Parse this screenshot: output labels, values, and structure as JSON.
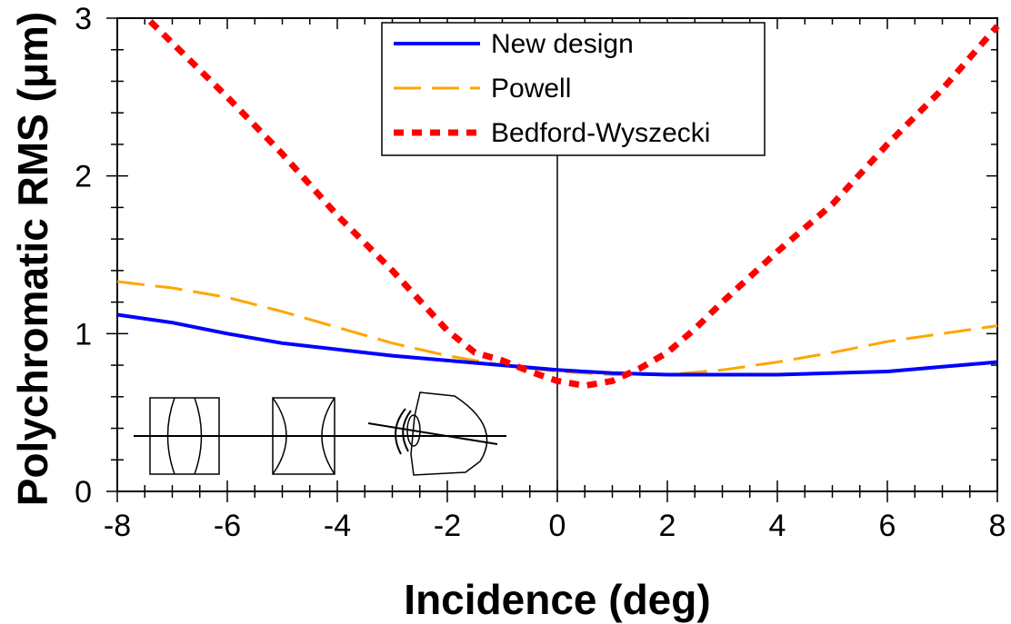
{
  "chart_data": {
    "type": "line",
    "xlabel": "Incidence (deg)",
    "ylabel": "Polychromatic RMS (μm)",
    "xlim": [
      -8,
      8
    ],
    "ylim": [
      0,
      3
    ],
    "xticks": [
      -8,
      -6,
      -4,
      -2,
      0,
      2,
      4,
      6,
      8
    ],
    "yticks": [
      0,
      1,
      2,
      3
    ],
    "grid": false,
    "legend_position": "top-center",
    "series": [
      {
        "name": "New design",
        "color": "#0000ff",
        "style": "solid",
        "x": [
          -8,
          -7,
          -6,
          -5,
          -4,
          -3,
          -2,
          -1,
          0,
          1,
          2,
          3,
          4,
          5,
          6,
          7,
          8
        ],
        "y": [
          1.12,
          1.07,
          1.0,
          0.94,
          0.9,
          0.86,
          0.83,
          0.8,
          0.77,
          0.75,
          0.74,
          0.74,
          0.74,
          0.75,
          0.76,
          0.79,
          0.82
        ]
      },
      {
        "name": "Powell",
        "color": "#ffa500",
        "style": "dashed",
        "x": [
          -8,
          -7,
          -6,
          -5,
          -4,
          -3,
          -2,
          -1,
          0,
          1,
          2,
          3,
          4,
          5,
          6,
          7,
          8
        ],
        "y": [
          1.33,
          1.29,
          1.23,
          1.14,
          1.04,
          0.94,
          0.86,
          0.8,
          0.76,
          0.74,
          0.74,
          0.77,
          0.82,
          0.88,
          0.95,
          1.0,
          1.05
        ]
      },
      {
        "name": "Bedford-Wyszecki",
        "color": "#ff0000",
        "style": "dotted",
        "x": [
          -7.4,
          -6,
          -5,
          -4,
          -3,
          -2,
          -1.5,
          -1,
          -0.5,
          0,
          0.5,
          1,
          1.5,
          2,
          2.5,
          3,
          4,
          5,
          6,
          7,
          8
        ],
        "y": [
          2.98,
          2.5,
          2.14,
          1.75,
          1.4,
          1.02,
          0.88,
          0.83,
          0.76,
          0.7,
          0.67,
          0.7,
          0.78,
          0.88,
          1.03,
          1.2,
          1.52,
          1.82,
          2.2,
          2.55,
          2.95
        ]
      }
    ]
  }
}
